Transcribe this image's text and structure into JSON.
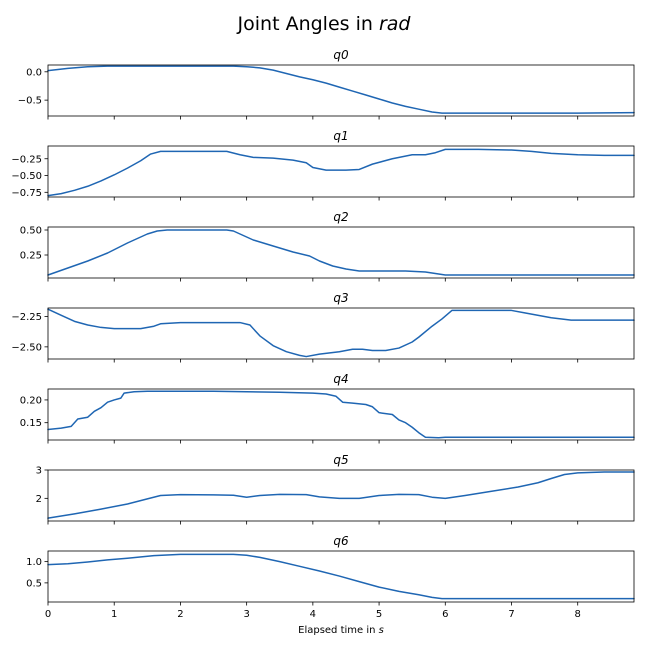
{
  "figure": {
    "title_prefix": "Joint Angles in ",
    "title_unit": "rad",
    "xlabel_prefix": "Elapsed time in ",
    "xlabel_unit": "s"
  },
  "chart_data": {
    "type": "line",
    "line_color": "#1f66b3",
    "xlim": [
      0,
      8.85
    ],
    "xticks": [
      0,
      1,
      2,
      3,
      4,
      5,
      6,
      7,
      8
    ],
    "xtick_labels": [
      "0",
      "1",
      "2",
      "3",
      "4",
      "5",
      "6",
      "7",
      "8"
    ],
    "xticks_labeled_only_on_bottom": true,
    "grid": false,
    "legend": "none",
    "subplots": [
      {
        "title": "q0",
        "ylim": [
          -0.78,
          0.12
        ],
        "yticks": [
          0.0,
          -0.5
        ],
        "ytick_labels": [
          "0.0",
          "−0.5"
        ],
        "x": [
          0,
          0.3,
          0.6,
          0.9,
          1.2,
          1.5,
          2.0,
          2.5,
          2.8,
          3.0,
          3.2,
          3.4,
          3.6,
          3.8,
          4.0,
          4.2,
          4.4,
          4.6,
          4.8,
          5.0,
          5.2,
          5.4,
          5.6,
          5.8,
          5.95,
          6.2,
          7.0,
          8.0,
          8.85
        ],
        "y": [
          0.02,
          0.06,
          0.09,
          0.1,
          0.1,
          0.1,
          0.1,
          0.1,
          0.1,
          0.09,
          0.07,
          0.03,
          -0.03,
          -0.09,
          -0.14,
          -0.2,
          -0.27,
          -0.34,
          -0.41,
          -0.48,
          -0.55,
          -0.61,
          -0.66,
          -0.71,
          -0.73,
          -0.73,
          -0.73,
          -0.73,
          -0.72
        ]
      },
      {
        "title": "q1",
        "ylim": [
          -0.82,
          -0.06
        ],
        "yticks": [
          -0.25,
          -0.5,
          -0.75
        ],
        "ytick_labels": [
          "−0.25",
          "−0.50",
          "−0.75"
        ],
        "x": [
          0,
          0.2,
          0.4,
          0.6,
          0.8,
          1.0,
          1.2,
          1.4,
          1.55,
          1.7,
          2.0,
          2.4,
          2.7,
          2.9,
          3.1,
          3.4,
          3.7,
          3.9,
          4.0,
          4.2,
          4.5,
          4.7,
          4.9,
          5.2,
          5.5,
          5.7,
          5.85,
          6.0,
          6.5,
          7.0,
          7.3,
          7.6,
          8.0,
          8.4,
          8.85
        ],
        "y": [
          -0.8,
          -0.77,
          -0.72,
          -0.66,
          -0.58,
          -0.49,
          -0.39,
          -0.28,
          -0.18,
          -0.14,
          -0.14,
          -0.14,
          -0.14,
          -0.19,
          -0.23,
          -0.24,
          -0.27,
          -0.31,
          -0.38,
          -0.42,
          -0.42,
          -0.41,
          -0.33,
          -0.25,
          -0.19,
          -0.19,
          -0.16,
          -0.11,
          -0.11,
          -0.12,
          -0.14,
          -0.17,
          -0.19,
          -0.2,
          -0.2
        ]
      },
      {
        "title": "q2",
        "ylim": [
          0.02,
          0.53
        ],
        "yticks": [
          0.5,
          0.25
        ],
        "ytick_labels": [
          "0.50",
          "0.25"
        ],
        "x": [
          0,
          0.3,
          0.6,
          0.9,
          1.2,
          1.5,
          1.65,
          1.8,
          2.0,
          2.4,
          2.7,
          2.8,
          2.9,
          3.1,
          3.4,
          3.7,
          3.95,
          4.1,
          4.3,
          4.5,
          4.7,
          5.0,
          5.4,
          5.7,
          5.9,
          6.0,
          6.5,
          7.0,
          8.0,
          8.85
        ],
        "y": [
          0.05,
          0.12,
          0.19,
          0.27,
          0.37,
          0.46,
          0.49,
          0.5,
          0.5,
          0.5,
          0.5,
          0.49,
          0.46,
          0.4,
          0.34,
          0.28,
          0.24,
          0.19,
          0.14,
          0.11,
          0.09,
          0.09,
          0.09,
          0.08,
          0.06,
          0.05,
          0.05,
          0.05,
          0.05,
          0.05
        ]
      },
      {
        "title": "q3",
        "ylim": [
          -2.6,
          -2.18
        ],
        "yticks": [
          -2.25,
          -2.5
        ],
        "ytick_labels": [
          "−2.25",
          "−2.50"
        ],
        "x": [
          0,
          0.2,
          0.4,
          0.6,
          0.8,
          1.0,
          1.2,
          1.4,
          1.6,
          1.7,
          2.0,
          2.4,
          2.7,
          2.9,
          3.05,
          3.2,
          3.4,
          3.6,
          3.8,
          3.9,
          4.1,
          4.4,
          4.6,
          4.75,
          4.9,
          5.1,
          5.3,
          5.5,
          5.6,
          5.8,
          5.95,
          6.1,
          6.5,
          7.0,
          7.2,
          7.6,
          7.9,
          8.3,
          8.85
        ],
        "y": [
          -2.19,
          -2.24,
          -2.29,
          -2.32,
          -2.34,
          -2.35,
          -2.35,
          -2.35,
          -2.33,
          -2.31,
          -2.3,
          -2.3,
          -2.3,
          -2.3,
          -2.32,
          -2.41,
          -2.49,
          -2.54,
          -2.57,
          -2.58,
          -2.56,
          -2.54,
          -2.52,
          -2.52,
          -2.53,
          -2.53,
          -2.51,
          -2.46,
          -2.42,
          -2.33,
          -2.27,
          -2.2,
          -2.2,
          -2.2,
          -2.22,
          -2.26,
          -2.28,
          -2.28,
          -2.28
        ]
      },
      {
        "title": "q4",
        "ylim": [
          0.112,
          0.224
        ],
        "yticks": [
          0.2,
          0.15
        ],
        "ytick_labels": [
          "0.20",
          "0.15"
        ],
        "x": [
          0,
          0.2,
          0.35,
          0.45,
          0.6,
          0.7,
          0.8,
          0.9,
          1.0,
          1.1,
          1.15,
          1.3,
          1.5,
          2.0,
          2.5,
          3.0,
          3.5,
          4.0,
          4.2,
          4.35,
          4.45,
          4.6,
          4.8,
          4.9,
          5.0,
          5.2,
          5.3,
          5.4,
          5.5,
          5.6,
          5.7,
          5.9,
          6.0,
          7.0,
          8.0,
          8.85
        ],
        "y": [
          0.135,
          0.138,
          0.142,
          0.158,
          0.162,
          0.175,
          0.183,
          0.195,
          0.2,
          0.204,
          0.215,
          0.218,
          0.219,
          0.219,
          0.219,
          0.218,
          0.217,
          0.215,
          0.213,
          0.208,
          0.195,
          0.193,
          0.19,
          0.185,
          0.172,
          0.168,
          0.156,
          0.15,
          0.14,
          0.128,
          0.118,
          0.117,
          0.118,
          0.118,
          0.118,
          0.118
        ]
      },
      {
        "title": "q5",
        "ylim": [
          1.2,
          3.0
        ],
        "yticks": [
          3,
          2
        ],
        "ytick_labels": [
          "3",
          "2"
        ],
        "x": [
          0,
          0.4,
          0.8,
          1.2,
          1.5,
          1.7,
          2.0,
          2.5,
          2.8,
          3.0,
          3.2,
          3.5,
          3.9,
          4.1,
          4.4,
          4.7,
          5.0,
          5.3,
          5.6,
          5.8,
          6.0,
          6.3,
          6.7,
          7.1,
          7.4,
          7.6,
          7.8,
          8.0,
          8.4,
          8.85
        ],
        "y": [
          1.3,
          1.45,
          1.62,
          1.8,
          1.98,
          2.1,
          2.13,
          2.12,
          2.11,
          2.04,
          2.1,
          2.14,
          2.13,
          2.05,
          2.0,
          2.0,
          2.1,
          2.14,
          2.13,
          2.04,
          2.0,
          2.1,
          2.25,
          2.4,
          2.55,
          2.7,
          2.84,
          2.9,
          2.93,
          2.93
        ]
      },
      {
        "title": "q6",
        "ylim": [
          0.05,
          1.25
        ],
        "yticks": [
          1.0,
          0.5
        ],
        "ytick_labels": [
          "1.0",
          "0.5"
        ],
        "x": [
          0,
          0.3,
          0.6,
          0.9,
          1.2,
          1.6,
          2.0,
          2.4,
          2.8,
          3.0,
          3.2,
          3.5,
          3.8,
          4.1,
          4.4,
          4.7,
          5.0,
          5.3,
          5.6,
          5.8,
          5.95,
          6.5,
          7.0,
          8.0,
          8.85
        ],
        "y": [
          0.93,
          0.95,
          0.99,
          1.04,
          1.08,
          1.14,
          1.17,
          1.17,
          1.17,
          1.15,
          1.1,
          1.0,
          0.89,
          0.78,
          0.66,
          0.53,
          0.4,
          0.3,
          0.22,
          0.16,
          0.13,
          0.13,
          0.13,
          0.13,
          0.13
        ]
      }
    ]
  }
}
